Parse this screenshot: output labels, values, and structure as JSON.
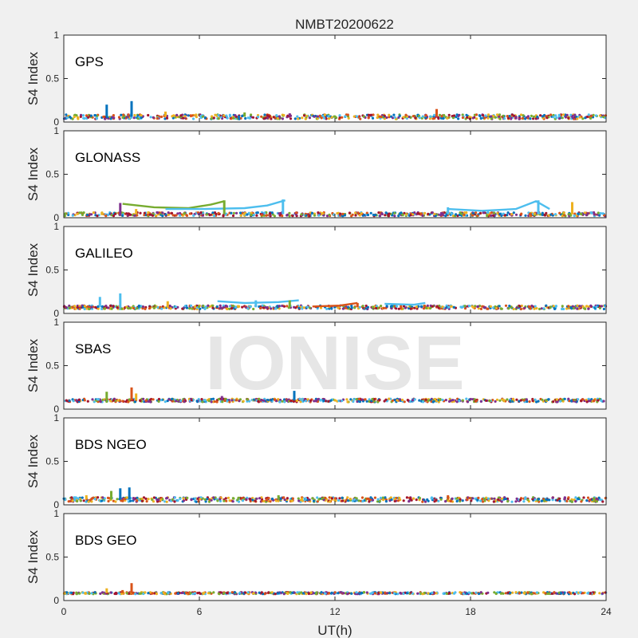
{
  "figure": {
    "title": "NMBT20200622",
    "watermark": "IONISE",
    "xlabel": "UT(h)",
    "ylabel": "S4 Index",
    "xticks": [
      "0",
      "6",
      "12",
      "18",
      "24"
    ],
    "yticks": [
      "0",
      "0.5",
      "1"
    ]
  },
  "colors": [
    "#0072BD",
    "#D95319",
    "#EDB120",
    "#7E2F8E",
    "#77AC30",
    "#4DBEEE",
    "#A2142F"
  ],
  "chart_data": [
    {
      "type": "scatter",
      "panel": "GPS",
      "xlim": [
        0,
        24
      ],
      "ylim": [
        0,
        1
      ],
      "baseline": 0.06,
      "noise": 0.025,
      "features": [
        {
          "x": 1.9,
          "y": 0.2,
          "color": 0
        },
        {
          "x": 3.0,
          "y": 0.24,
          "color": 0
        },
        {
          "x": 16.5,
          "y": 0.15,
          "color": 1
        },
        {
          "x": 4.5,
          "y": 0.12,
          "color": 2
        },
        {
          "x": 8.0,
          "y": 0.11,
          "color": 4
        },
        {
          "x": 10.0,
          "y": 0.1,
          "color": 3
        }
      ]
    },
    {
      "type": "scatter",
      "panel": "GLONASS",
      "xlim": [
        0,
        24
      ],
      "ylim": [
        0,
        1
      ],
      "baseline": 0.04,
      "noise": 0.02,
      "features": [
        {
          "x": 2.5,
          "y": 0.17,
          "color": 3
        },
        {
          "x": 3.2,
          "y": 0.1,
          "color": 2
        },
        {
          "x": 7.1,
          "y": 0.2,
          "color": 4
        },
        {
          "x": 9.7,
          "y": 0.21,
          "color": 5
        },
        {
          "x": 17.0,
          "y": 0.12,
          "color": 5
        },
        {
          "x": 21.0,
          "y": 0.2,
          "color": 5
        },
        {
          "x": 22.5,
          "y": 0.18,
          "color": 2
        }
      ],
      "curves": [
        {
          "color": 4,
          "points": [
            [
              2.6,
              0.16
            ],
            [
              4.0,
              0.12
            ],
            [
              5.5,
              0.11
            ],
            [
              6.5,
              0.15
            ],
            [
              7.1,
              0.19
            ]
          ]
        },
        {
          "color": 5,
          "points": [
            [
              4.5,
              0.1
            ],
            [
              6.0,
              0.1
            ],
            [
              8.0,
              0.11
            ],
            [
              9.0,
              0.14
            ],
            [
              9.8,
              0.2
            ]
          ]
        },
        {
          "color": 5,
          "points": [
            [
              17.0,
              0.1
            ],
            [
              18.5,
              0.08
            ],
            [
              20.0,
              0.1
            ],
            [
              20.9,
              0.19
            ],
            [
              21.5,
              0.1
            ]
          ]
        }
      ]
    },
    {
      "type": "scatter",
      "panel": "GALILEO",
      "xlim": [
        0,
        24
      ],
      "ylim": [
        0,
        1
      ],
      "baseline": 0.07,
      "noise": 0.02,
      "features": [
        {
          "x": 1.6,
          "y": 0.19,
          "color": 5
        },
        {
          "x": 2.5,
          "y": 0.23,
          "color": 5
        },
        {
          "x": 4.6,
          "y": 0.14,
          "color": 2
        },
        {
          "x": 8.5,
          "y": 0.15,
          "color": 5
        },
        {
          "x": 10.0,
          "y": 0.15,
          "color": 4
        },
        {
          "x": 13.0,
          "y": 0.12,
          "color": 1
        }
      ],
      "curves": [
        {
          "color": 5,
          "points": [
            [
              6.8,
              0.14
            ],
            [
              8.0,
              0.12
            ],
            [
              9.5,
              0.13
            ],
            [
              10.4,
              0.15
            ]
          ]
        },
        {
          "color": 1,
          "points": [
            [
              11.0,
              0.08
            ],
            [
              12.2,
              0.09
            ],
            [
              13.0,
              0.12
            ]
          ]
        },
        {
          "color": 5,
          "points": [
            [
              14.2,
              0.11
            ],
            [
              15.5,
              0.1
            ],
            [
              16.0,
              0.12
            ]
          ]
        }
      ]
    },
    {
      "type": "scatter",
      "panel": "SBAS",
      "xlim": [
        0,
        24
      ],
      "ylim": [
        0,
        1
      ],
      "baseline": 0.1,
      "noise": 0.018,
      "features": [
        {
          "x": 1.9,
          "y": 0.2,
          "color": 4
        },
        {
          "x": 3.0,
          "y": 0.25,
          "color": 1
        },
        {
          "x": 3.2,
          "y": 0.18,
          "color": 2
        },
        {
          "x": 7.0,
          "y": 0.15,
          "color": 3
        },
        {
          "x": 10.2,
          "y": 0.21,
          "color": 0
        }
      ]
    },
    {
      "type": "scatter",
      "panel": "BDS NGEO",
      "xlim": [
        0,
        24
      ],
      "ylim": [
        0,
        1
      ],
      "baseline": 0.06,
      "noise": 0.025,
      "features": [
        {
          "x": 1.0,
          "y": 0.11,
          "color": 2
        },
        {
          "x": 2.1,
          "y": 0.16,
          "color": 4
        },
        {
          "x": 2.5,
          "y": 0.19,
          "color": 0
        },
        {
          "x": 2.9,
          "y": 0.2,
          "color": 0
        },
        {
          "x": 9.5,
          "y": 0.11,
          "color": 4
        },
        {
          "x": 17.0,
          "y": 0.11,
          "color": 1
        }
      ]
    },
    {
      "type": "scatter",
      "panel": "BDS GEO",
      "xlim": [
        0,
        24
      ],
      "ylim": [
        0,
        1
      ],
      "baseline": 0.085,
      "noise": 0.01,
      "features": [
        {
          "x": 1.9,
          "y": 0.14,
          "color": 2
        },
        {
          "x": 3.0,
          "y": 0.2,
          "color": 1
        },
        {
          "x": 2.6,
          "y": 0.12,
          "color": 1
        }
      ]
    }
  ]
}
